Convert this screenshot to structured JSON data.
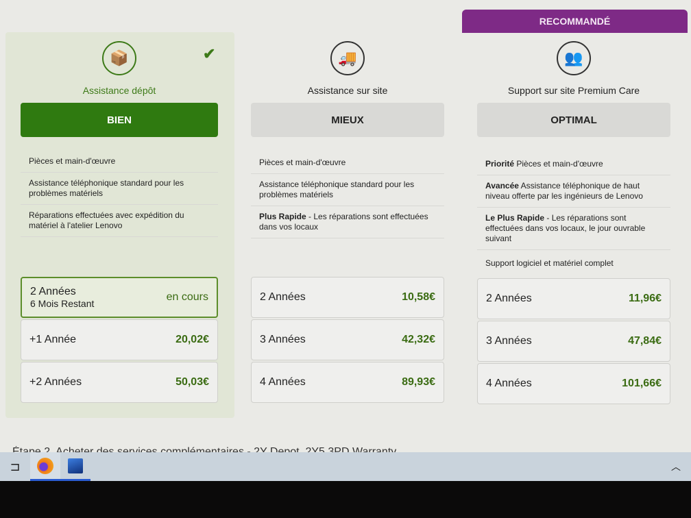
{
  "recommended_label": "RECOMMANDÉ",
  "plans": [
    {
      "title": "Assistance dépôt",
      "tier": "BIEN",
      "icon": "package-check-icon",
      "features": [
        [
          "",
          "Pièces et main-d'œuvre"
        ],
        [
          "",
          "Assistance téléphonique standard pour les problèmes matériels"
        ],
        [
          "",
          "Réparations effectuées avec expédition du matériel à l'atelier Lenovo"
        ]
      ],
      "prices": [
        {
          "duration": "2 Années",
          "sub": "6 Mois Restant",
          "value": "en cours"
        },
        {
          "duration": "+1 Année",
          "value": "20,02€"
        },
        {
          "duration": "+2 Années",
          "value": "50,03€"
        }
      ]
    },
    {
      "title": "Assistance sur site",
      "tier": "MIEUX",
      "icon": "delivery-truck-icon",
      "features": [
        [
          "",
          "Pièces et main-d'œuvre"
        ],
        [
          "",
          "Assistance téléphonique standard pour les problèmes matériels"
        ],
        [
          "Plus Rapide",
          " - Les réparations sont effectuées dans vos locaux"
        ]
      ],
      "prices": [
        {
          "duration": "2 Années",
          "value": "10,58€"
        },
        {
          "duration": "3 Années",
          "value": "42,32€"
        },
        {
          "duration": "4 Années",
          "value": "89,93€"
        }
      ]
    },
    {
      "title": "Support sur site Premium Care",
      "tier": "OPTIMAL",
      "icon": "support-people-icon",
      "features": [
        [
          "Priorité",
          " Pièces et main-d'œuvre"
        ],
        [
          "Avancée",
          " Assistance téléphonique de haut niveau offerte par les ingénieurs de Lenovo"
        ],
        [
          "Le Plus Rapide",
          " - Les réparations sont effectuées dans vos locaux, le jour ouvrable suivant"
        ],
        [
          "",
          "Support logiciel et matériel complet"
        ]
      ],
      "prices": [
        {
          "duration": "2 Années",
          "value": "11,96€"
        },
        {
          "duration": "3 Années",
          "value": "47,84€"
        },
        {
          "duration": "4 Années",
          "value": "101,66€"
        }
      ]
    }
  ],
  "step_text": "Étape 2. Acheter des services complémentaires - 2Y Depot, 2Y5 3PD Warranty",
  "colors": {
    "accent_green": "#3d7a18",
    "recommended": "#7e2a86"
  }
}
